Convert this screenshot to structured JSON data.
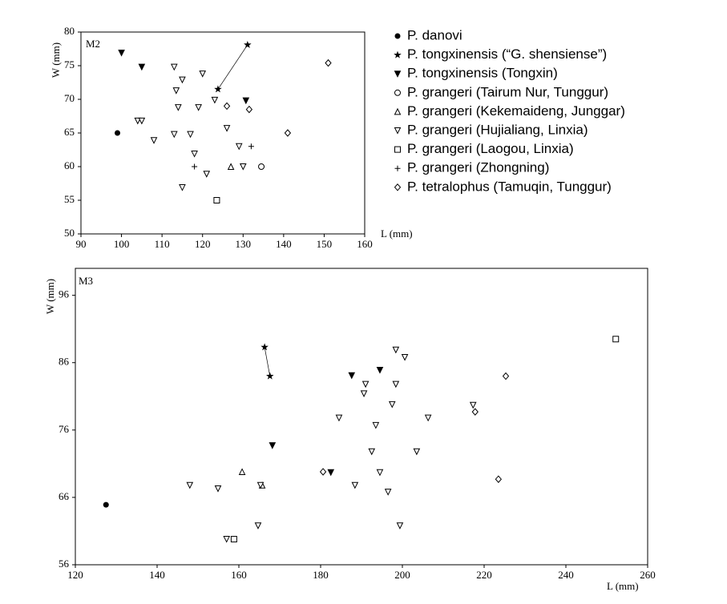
{
  "chart_data": [
    {
      "type": "scatter",
      "title": "M2",
      "x_label": "L (mm)",
      "y_label": "W (mm)",
      "xlim": [
        90,
        160
      ],
      "ylim": [
        50,
        80
      ],
      "xticks": [
        90,
        100,
        110,
        120,
        130,
        140,
        150,
        160
      ],
      "yticks": [
        50,
        55,
        60,
        65,
        70,
        75,
        80
      ],
      "legend": "right",
      "series": [
        {
          "name": "P. danovi",
          "marker": "filled-circle",
          "color": "#000000",
          "x": [
            99
          ],
          "y": [
            65
          ]
        },
        {
          "name": "P. tongxinensis (“G. shensiense”)",
          "marker": "star",
          "color": "#000000",
          "line": true,
          "x": [
            123.8,
            131.1
          ],
          "y": [
            71.5,
            78.1
          ]
        },
        {
          "name": "P. tongxinensis (Tongxin)",
          "marker": "filled-down-triangle",
          "color": "#000000",
          "x": [
            100,
            105,
            130.7
          ],
          "y": [
            76.9,
            74.8,
            69.8
          ]
        },
        {
          "name": "P. grangeri (Tairum Nur, Tunggur)",
          "marker": "circle",
          "color": "#000000",
          "x": [
            134.5
          ],
          "y": [
            60
          ]
        },
        {
          "name": "P. grangeri (Kekemaideng, Junggar)",
          "marker": "up-triangle",
          "color": "#000000",
          "x": [
            127
          ],
          "y": [
            60
          ]
        },
        {
          "name": "P. grangeri (Hujialiang, Linxia)",
          "marker": "down-triangle",
          "color": "#000000",
          "x": [
            113,
            115,
            113.5,
            120,
            123,
            114,
            104,
            105,
            108,
            113,
            117,
            126,
            119,
            118,
            121,
            129,
            130,
            115
          ],
          "y": [
            74.8,
            72.9,
            71.3,
            73.8,
            69.9,
            68.8,
            66.8,
            66.8,
            63.9,
            64.8,
            64.8,
            65.7,
            68.8,
            61.9,
            58.9,
            63,
            60,
            56.9
          ]
        },
        {
          "name": "P. grangeri (Laogou, Linxia)",
          "marker": "square",
          "color": "#000000",
          "x": [
            123.5
          ],
          "y": [
            55
          ]
        },
        {
          "name": "P. grangeri (Zhongning)",
          "marker": "plus",
          "color": "#000000",
          "x": [
            118,
            132
          ],
          "y": [
            60,
            63
          ]
        },
        {
          "name": "P. tetralophus (Tamuqin, Tunggur)",
          "marker": "diamond",
          "color": "#000000",
          "x": [
            151,
            131.5,
            126,
            141
          ],
          "y": [
            75.4,
            68.5,
            69,
            65
          ]
        }
      ]
    },
    {
      "type": "scatter",
      "title": "M3",
      "x_label": "L (mm)",
      "y_label": "W (mm)",
      "xlim": [
        120,
        260
      ],
      "ylim": [
        56,
        100
      ],
      "xticks": [
        120,
        140,
        160,
        180,
        200,
        220,
        240,
        260
      ],
      "yticks": [
        56,
        66,
        76,
        86,
        96
      ],
      "series": [
        {
          "marker": "filled-circle",
          "color": "#000000",
          "x": [
            127.5
          ],
          "y": [
            64.9
          ]
        },
        {
          "marker": "star",
          "color": "#000000",
          "line": true,
          "x": [
            166.3,
            167.6
          ],
          "y": [
            88.3,
            84
          ]
        },
        {
          "marker": "filled-down-triangle",
          "color": "#000000",
          "x": [
            187.6,
            194.5,
            168.2,
            182.5
          ],
          "y": [
            84.1,
            84.9,
            73.7,
            69.7
          ]
        },
        {
          "marker": "circle",
          "color": "#000000",
          "x": [],
          "y": []
        },
        {
          "marker": "up-triangle",
          "color": "#000000",
          "x": [
            160.8,
            165.7
          ],
          "y": [
            69.8,
            67.8
          ]
        },
        {
          "marker": "down-triangle",
          "color": "#000000",
          "x": [
            198.4,
            200.6,
            191,
            198.4,
            197.5,
            190.6,
            184.5,
            193.5,
            206.3,
            192.5,
            203.5,
            194.5,
            188.4,
            196.5,
            199.4,
            217.3,
            148,
            154.9,
            165.3,
            164.7,
            157
          ],
          "y": [
            87.9,
            86.8,
            82.8,
            82.8,
            79.8,
            81.4,
            77.8,
            76.7,
            77.8,
            72.8,
            72.8,
            69.7,
            67.8,
            66.8,
            61.8,
            79.7,
            67.8,
            67.3,
            67.8,
            61.8,
            59.8
          ]
        },
        {
          "marker": "square",
          "color": "#000000",
          "x": [
            158.8,
            252.2
          ],
          "y": [
            59.8,
            89.5
          ]
        },
        {
          "marker": "plus",
          "color": "#000000",
          "x": [],
          "y": []
        },
        {
          "marker": "diamond",
          "color": "#000000",
          "x": [
            180.6,
            225.3,
            217.8,
            223.5
          ],
          "y": [
            69.8,
            84,
            78.7,
            68.7
          ]
        }
      ]
    }
  ]
}
